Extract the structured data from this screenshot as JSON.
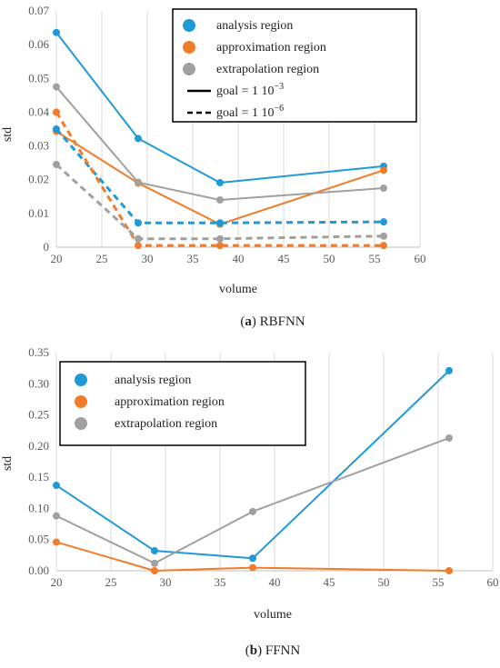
{
  "chart_data": [
    {
      "type": "line",
      "panel_label": "a",
      "caption": "RBFNN",
      "xlabel": "volume",
      "ylabel": "std",
      "xlim": [
        20,
        60
      ],
      "ylim": [
        0,
        0.07
      ],
      "xticks": [
        "20",
        "25",
        "30",
        "35",
        "40",
        "45",
        "50",
        "55",
        "60"
      ],
      "yticks": [
        "0",
        "0.01",
        "0.02",
        "0.03",
        "0.04",
        "0.05",
        "0.06",
        "0.07"
      ],
      "grid": "vertical",
      "legend_position": "top-right",
      "x": [
        20,
        29,
        38,
        56
      ],
      "series": [
        {
          "name": "analysis region",
          "goal": "1e-3",
          "color": "#1f9ad6",
          "dashed": false,
          "values": [
            0.0636,
            0.0322,
            0.0191,
            0.024
          ]
        },
        {
          "name": "approximation region",
          "goal": "1e-3",
          "color": "#f07c2a",
          "dashed": false,
          "values": [
            0.0343,
            0.019,
            0.0068,
            0.0228
          ]
        },
        {
          "name": "extrapolation region",
          "goal": "1e-3",
          "color": "#a0a0a0",
          "dashed": false,
          "values": [
            0.0475,
            0.0192,
            0.014,
            0.0175
          ]
        },
        {
          "name": "analysis region",
          "goal": "1e-6",
          "color": "#1f9ad6",
          "dashed": true,
          "values": [
            0.035,
            0.0072,
            0.0072,
            0.0075
          ]
        },
        {
          "name": "approximation region",
          "goal": "1e-6",
          "color": "#f07c2a",
          "dashed": true,
          "values": [
            0.04,
            0.0005,
            0.0005,
            0.0005
          ]
        },
        {
          "name": "extrapolation region",
          "goal": "1e-6",
          "color": "#a0a0a0",
          "dashed": true,
          "values": [
            0.0245,
            0.0025,
            0.0025,
            0.0033
          ]
        }
      ],
      "legend": [
        {
          "label": "analysis region",
          "kind": "marker",
          "color": "#1f9ad6"
        },
        {
          "label": "approximation region",
          "kind": "marker",
          "color": "#f07c2a"
        },
        {
          "label": "extrapolation region",
          "kind": "marker",
          "color": "#a0a0a0"
        },
        {
          "label": "goal = 1 10",
          "sup": "−3",
          "kind": "solid"
        },
        {
          "label": "goal = 1 10",
          "sup": "−6",
          "kind": "dashed"
        }
      ]
    },
    {
      "type": "line",
      "panel_label": "b",
      "caption": "FFNN",
      "xlabel": "volume",
      "ylabel": "std",
      "xlim": [
        20,
        60
      ],
      "ylim": [
        0,
        0.35
      ],
      "xticks": [
        "20",
        "25",
        "30",
        "35",
        "40",
        "45",
        "50",
        "55",
        "60"
      ],
      "yticks": [
        "0.00",
        "0.05",
        "0.10",
        "0.15",
        "0.20",
        "0.25",
        "0.30",
        "0.35"
      ],
      "grid": "vertical",
      "legend_position": "top-left",
      "x": [
        20,
        29,
        38,
        56
      ],
      "series": [
        {
          "name": "analysis region",
          "color": "#1f9ad6",
          "dashed": false,
          "values": [
            0.137,
            0.032,
            0.02,
            0.321
          ]
        },
        {
          "name": "approximation region",
          "color": "#f07c2a",
          "dashed": false,
          "values": [
            0.046,
            0.0,
            0.005,
            0.0
          ]
        },
        {
          "name": "extrapolation region",
          "color": "#a0a0a0",
          "dashed": false,
          "values": [
            0.088,
            0.012,
            0.095,
            0.213
          ]
        }
      ],
      "legend": [
        {
          "label": "analysis region",
          "kind": "marker",
          "color": "#1f9ad6"
        },
        {
          "label": "approximation region",
          "kind": "marker",
          "color": "#f07c2a"
        },
        {
          "label": "extrapolation region",
          "kind": "marker",
          "color": "#a0a0a0"
        }
      ]
    }
  ]
}
